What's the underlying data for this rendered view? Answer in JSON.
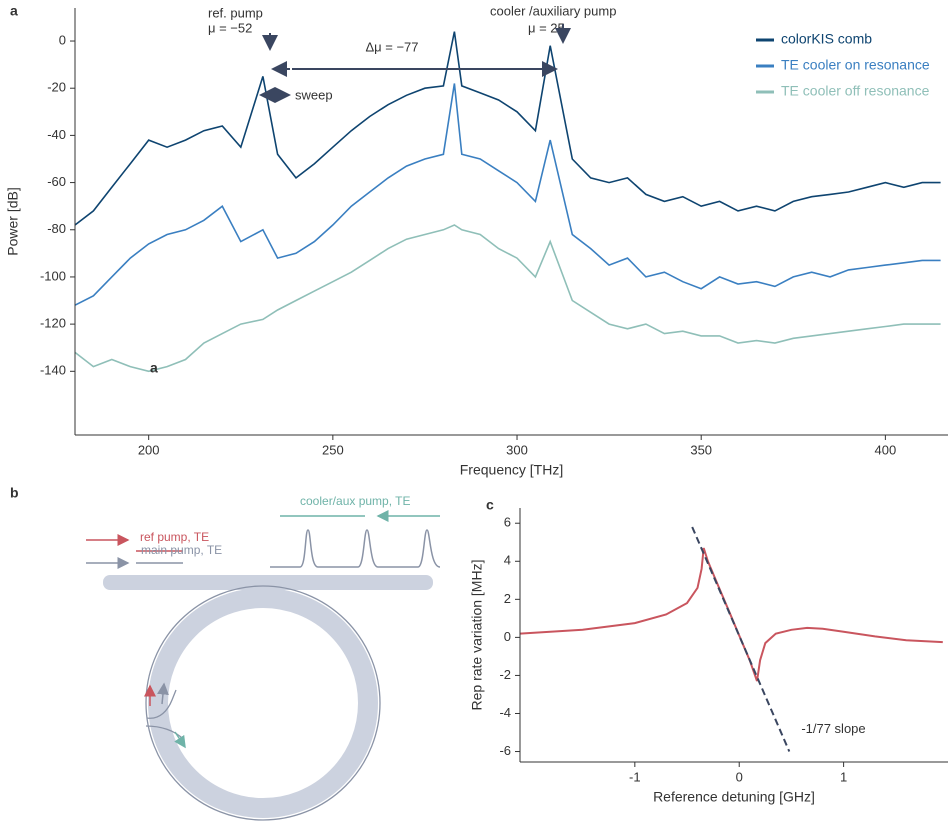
{
  "panel_labels": [
    "a",
    "b",
    "c"
  ],
  "chart_data": [
    {
      "type": "line",
      "xlabel": "Frequency [THz]",
      "ylabel": "Power [dB]",
      "xlim": [
        180,
        417
      ],
      "ylim": [
        -167,
        14
      ],
      "xticks": [
        200,
        250,
        300,
        350,
        400
      ],
      "yticks": [
        0,
        -20,
        -40,
        -60,
        -80,
        -100,
        -120,
        -140
      ],
      "legend": "upper right",
      "annotations": [
        "ref. pump",
        "μ = −52",
        "Δμ = −77",
        "cooler /auxiliary pump",
        "μ = 25",
        "sweep",
        "a"
      ],
      "x": [
        180,
        185,
        190,
        195,
        200,
        205,
        210,
        215,
        220,
        225,
        231,
        235,
        240,
        245,
        250,
        255,
        260,
        265,
        270,
        275,
        280,
        283,
        285,
        290,
        295,
        300,
        305,
        309,
        315,
        320,
        325,
        330,
        335,
        340,
        345,
        350,
        355,
        360,
        365,
        370,
        375,
        380,
        385,
        390,
        395,
        400,
        405,
        410,
        415
      ],
      "series": [
        {
          "name": "colorKIS comb",
          "color": "#0e4470",
          "values": [
            -78,
            -72,
            -62,
            -52,
            -42,
            -45,
            -42,
            -38,
            -36,
            -45,
            -15,
            -48,
            -58,
            -52,
            -45,
            -38,
            -32,
            -27,
            -23,
            -20,
            -19,
            4,
            -19,
            -22,
            -25,
            -30,
            -38,
            -2,
            -50,
            -58,
            -60,
            -58,
            -65,
            -68,
            -66,
            -70,
            -68,
            -72,
            -70,
            -72,
            -68,
            -66,
            -65,
            -64,
            -62,
            -60,
            -62,
            -60,
            -60
          ]
        },
        {
          "name": "TE cooler on resonance",
          "color": "#3a7fc1",
          "values": [
            -112,
            -108,
            -100,
            -92,
            -86,
            -82,
            -80,
            -76,
            -70,
            -85,
            -80,
            -92,
            -90,
            -85,
            -78,
            -70,
            -64,
            -58,
            -53,
            -50,
            -48,
            -18,
            -48,
            -50,
            -55,
            -60,
            -68,
            -42,
            -82,
            -88,
            -95,
            -92,
            -100,
            -98,
            -102,
            -105,
            -100,
            -103,
            -102,
            -104,
            -100,
            -98,
            -100,
            -97,
            -96,
            -95,
            -94,
            -93,
            -93
          ]
        },
        {
          "name": "TE cooler off resonance",
          "color": "#8fbfb8",
          "values": [
            -132,
            -138,
            -135,
            -138,
            -140,
            -138,
            -135,
            -128,
            -124,
            -120,
            -118,
            -114,
            -110,
            -106,
            -102,
            -98,
            -93,
            -88,
            -84,
            -82,
            -80,
            -78,
            -80,
            -82,
            -88,
            -92,
            -100,
            -85,
            -110,
            -115,
            -120,
            -122,
            -120,
            -124,
            -123,
            -125,
            -125,
            -128,
            -127,
            -128,
            -126,
            -125,
            -124,
            -123,
            -122,
            -121,
            -120,
            -120,
            -120
          ]
        }
      ]
    },
    {
      "type": "line",
      "xlabel": "Reference detuning [GHz]",
      "ylabel": "Rep rate variation [MHz]",
      "xlim": [
        -2.1,
        2.0
      ],
      "ylim": [
        -6.55,
        6.8
      ],
      "xticks": [
        -1,
        0,
        1
      ],
      "yticks": [
        -6,
        -4,
        -2,
        0,
        2,
        4,
        6
      ],
      "series": [
        {
          "color": "#c9555e",
          "x": [
            -2.1,
            -1.5,
            -1,
            -0.7,
            -0.5,
            -0.4,
            -0.36,
            -0.34,
            -0.3,
            -0.2,
            -0.1,
            0,
            0.1,
            0.17,
            0.2,
            0.25,
            0.35,
            0.5,
            0.65,
            0.8,
            1,
            1.3,
            1.6,
            1.95
          ],
          "values": [
            0.2,
            0.4,
            0.75,
            1.2,
            1.8,
            2.6,
            3.6,
            4.7,
            4.0,
            2.7,
            1.4,
            0.1,
            -1.2,
            -2.3,
            -1.2,
            -0.3,
            0.2,
            0.4,
            0.5,
            0.45,
            0.3,
            0.05,
            -0.15,
            -0.25
          ]
        },
        {
          "name": "-1/77 slope",
          "color": "#3a4660",
          "dashed": true,
          "x": [
            -0.45,
            0.48
          ],
          "values": [
            5.8,
            -6
          ]
        }
      ]
    }
  ],
  "diagram": {
    "labels": [
      "ref pump, TE",
      "main pump, TE",
      "cooler/aux pump, TE"
    ]
  }
}
